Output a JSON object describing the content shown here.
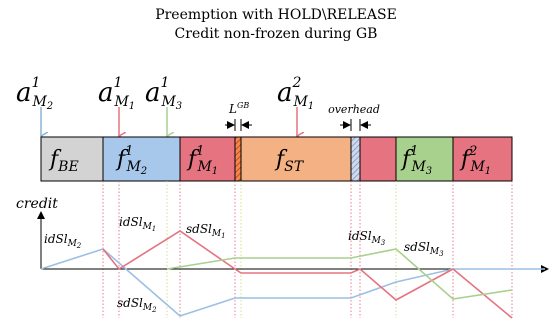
{
  "title": {
    "line1": "Preemption with HOLD\\RELEASE",
    "line2": "Credit non-frozen during GB"
  },
  "arrivals": [
    {
      "id": "a1-m2",
      "base": "a",
      "sup": "1",
      "sub": "M",
      "subsub": "2",
      "color": "#8fb3dc"
    },
    {
      "id": "a1-m1",
      "base": "a",
      "sup": "1",
      "sub": "M",
      "subsub": "1",
      "color": "#e57380"
    },
    {
      "id": "a1-m3",
      "base": "a",
      "sup": "1",
      "sub": "M",
      "subsub": "3",
      "color": "#a9d18e"
    },
    {
      "id": "a2-m1",
      "base": "a",
      "sup": "2",
      "sub": "M",
      "subsub": "1",
      "color": "#e57380"
    }
  ],
  "timeline_blocks": [
    {
      "id": "fbe",
      "label": "f",
      "sub": "BE",
      "fill": "#d3d3d3"
    },
    {
      "id": "f1m2",
      "label": "f",
      "sup": "1",
      "sub": "M",
      "subsub": "2",
      "fill": "#a7c7eb"
    },
    {
      "id": "f1m1-a",
      "label": "f",
      "sup": "1",
      "sub": "M",
      "subsub": "1",
      "fill": "#e57380"
    },
    {
      "id": "guard-1",
      "label": "",
      "fill": "#f08a4b",
      "pattern": "hatch"
    },
    {
      "id": "fst",
      "label": "f",
      "sub": "ST",
      "fill": "#f4b183"
    },
    {
      "id": "overhead-1",
      "label": "",
      "fill": "#9db4d6",
      "pattern": "hatch"
    },
    {
      "id": "f1m1-b",
      "label": "",
      "fill": "#e57380"
    },
    {
      "id": "f1m3",
      "label": "f",
      "sup": "1",
      "sub": "M",
      "subsub": "3",
      "fill": "#a9d18e"
    },
    {
      "id": "f2m1",
      "label": "f",
      "sup": "2",
      "sub": "M",
      "subsub": "1",
      "fill": "#e57380"
    }
  ],
  "annotations": {
    "guard_band": {
      "base": "L",
      "sup": "GB"
    },
    "overhead": "overhead"
  },
  "credit_axis": {
    "label": "credit"
  },
  "credit_labels": [
    {
      "id": "idsl-m2",
      "base": "idSl",
      "sub": "M",
      "subsub": "2"
    },
    {
      "id": "idsl-m1",
      "base": "idSl",
      "sub": "M",
      "subsub": "1"
    },
    {
      "id": "sdsl-m1",
      "base": "sdSl",
      "sub": "M",
      "subsub": "1"
    },
    {
      "id": "idsl-m3",
      "base": "idSl",
      "sub": "M",
      "subsub": "3"
    },
    {
      "id": "sdsl-m3",
      "base": "sdSl",
      "sub": "M",
      "subsub": "3"
    },
    {
      "id": "sdsl-m2",
      "base": "sdSl",
      "sub": "M",
      "subsub": "2"
    }
  ],
  "series_colors": {
    "m1": "#e57380",
    "m2": "#9cbfe3",
    "m3": "#a9d18e",
    "guide_m1": "#e06070",
    "guide_m3": "#c8d86a"
  }
}
